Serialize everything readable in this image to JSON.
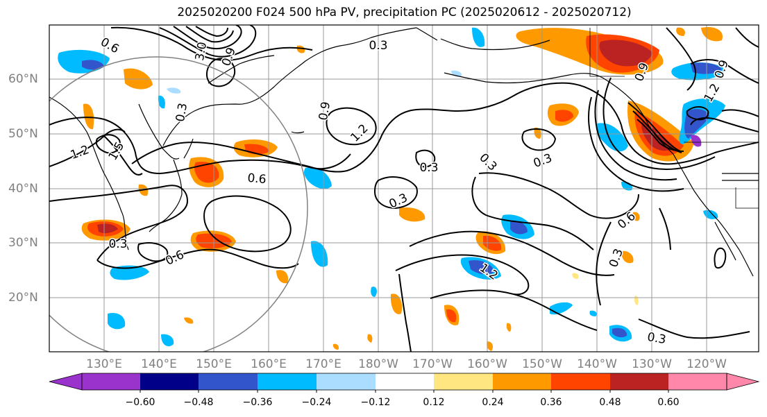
{
  "title": "2025020200 F024 500 hPa PV, precipitation PC (2025020612 - 2025020712)",
  "lat_labels": [
    "60°N",
    "50°N",
    "40°N",
    "30°N",
    "20°N"
  ],
  "lon_labels": [
    "130°E",
    "140°E",
    "150°E",
    "160°E",
    "170°E",
    "180°W",
    "170°W",
    "160°W",
    "150°W",
    "140°W",
    "130°W",
    "120°W"
  ],
  "contour_labels": [
    "0.6",
    "3.0",
    "1.2",
    "1.5",
    "0.3",
    "0.9",
    "1.2",
    "0.6",
    "0.3",
    "0.3",
    "0.3",
    "0.9",
    "1.2",
    "0.3",
    "0.3",
    "0.9",
    "0.6",
    "0.6",
    "0.3",
    "0.3",
    "0.3",
    "1.2",
    "0.9"
  ],
  "colorbar": {
    "ticks": [
      "−0.60",
      "−0.48",
      "−0.36",
      "−0.24",
      "−0.12",
      "0.12",
      "0.24",
      "0.36",
      "0.48",
      "0.60"
    ],
    "colors": [
      "#9933cc",
      "#000088",
      "#3355cc",
      "#00bbff",
      "#aaddff",
      "#ffffff",
      "#ffe680",
      "#ff9900",
      "#ff4400",
      "#bb2222",
      "#ff88aa"
    ]
  },
  "colors": {
    "grid": "#999999",
    "coast": "#000000",
    "contour": "#000000",
    "circle": "#808080"
  }
}
